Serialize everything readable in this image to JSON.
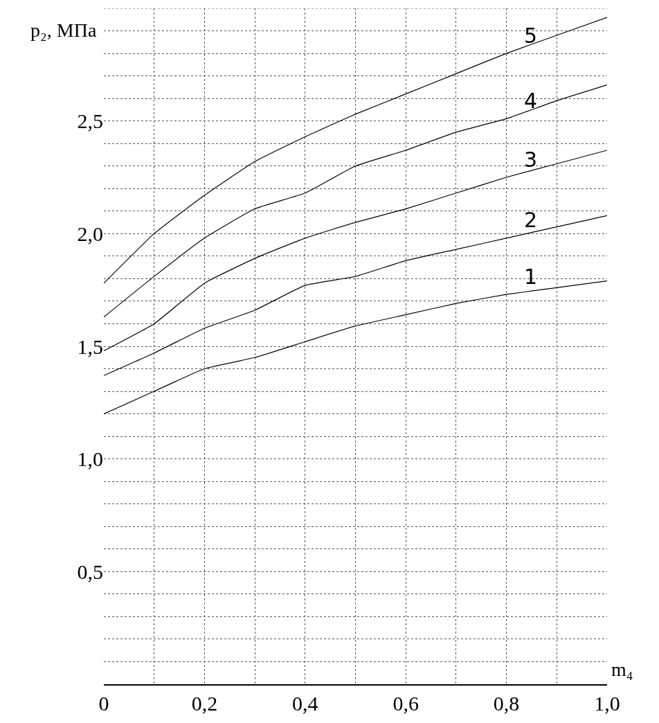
{
  "chart_data": {
    "type": "line",
    "xlabel": "m₄",
    "ylabel": "p₂, МПа",
    "x": [
      0,
      0.1,
      0.2,
      0.3,
      0.4,
      0.5,
      0.6,
      0.7,
      0.8,
      0.9,
      1.0
    ],
    "series": [
      {
        "name": "1",
        "color": "#000000",
        "values": [
          1.2,
          1.3,
          1.4,
          1.45,
          1.52,
          1.59,
          1.64,
          1.69,
          1.73,
          1.76,
          1.79
        ]
      },
      {
        "name": "2",
        "color": "#000000",
        "values": [
          1.37,
          1.47,
          1.58,
          1.66,
          1.77,
          1.81,
          1.88,
          1.93,
          1.98,
          2.03,
          2.08
        ]
      },
      {
        "name": "3",
        "color": "#000000",
        "values": [
          1.48,
          1.6,
          1.78,
          1.89,
          1.98,
          2.05,
          2.11,
          2.18,
          2.25,
          2.31,
          2.37
        ]
      },
      {
        "name": "4",
        "color": "#000000",
        "values": [
          1.63,
          1.81,
          1.98,
          2.11,
          2.18,
          2.3,
          2.37,
          2.45,
          2.51,
          2.59,
          2.66
        ]
      },
      {
        "name": "5",
        "color": "#000000",
        "values": [
          1.78,
          2.0,
          2.17,
          2.32,
          2.43,
          2.53,
          2.62,
          2.71,
          2.8,
          2.88,
          2.96
        ]
      }
    ],
    "xlim": [
      0,
      1.0
    ],
    "xticks": [
      {
        "value": 0,
        "label": "0"
      },
      {
        "value": 0.1,
        "label": null
      },
      {
        "value": 0.2,
        "label": "0,2"
      },
      {
        "value": 0.3,
        "label": null
      },
      {
        "value": 0.4,
        "label": "0,4"
      },
      {
        "value": 0.5,
        "label": null
      },
      {
        "value": 0.6,
        "label": "0,6"
      },
      {
        "value": 0.7,
        "label": null
      },
      {
        "value": 0.8,
        "label": "0,8"
      },
      {
        "value": 0.9,
        "label": null
      },
      {
        "value": 1.0,
        "label": "1,0"
      }
    ],
    "ylim": [
      0,
      3.0
    ],
    "yticks": [
      {
        "value": 0.1,
        "label": null
      },
      {
        "value": 0.2,
        "label": null
      },
      {
        "value": 0.3,
        "label": null
      },
      {
        "value": 0.4,
        "label": null
      },
      {
        "value": 0.5,
        "label": "0,5"
      },
      {
        "value": 0.6,
        "label": null
      },
      {
        "value": 0.7,
        "label": null
      },
      {
        "value": 0.8,
        "label": null
      },
      {
        "value": 0.9,
        "label": null
      },
      {
        "value": 1.0,
        "label": "1,0"
      },
      {
        "value": 1.1,
        "label": null
      },
      {
        "value": 1.2,
        "label": null
      },
      {
        "value": 1.3,
        "label": null
      },
      {
        "value": 1.4,
        "label": null
      },
      {
        "value": 1.5,
        "label": "1,5"
      },
      {
        "value": 1.6,
        "label": null
      },
      {
        "value": 1.7,
        "label": null
      },
      {
        "value": 1.8,
        "label": null
      },
      {
        "value": 1.9,
        "label": null
      },
      {
        "value": 2.0,
        "label": "2,0"
      },
      {
        "value": 2.1,
        "label": null
      },
      {
        "value": 2.2,
        "label": null
      },
      {
        "value": 2.3,
        "label": null
      },
      {
        "value": 2.4,
        "label": null
      },
      {
        "value": 2.5,
        "label": "2,5"
      },
      {
        "value": 2.6,
        "label": null
      },
      {
        "value": 2.7,
        "label": null
      },
      {
        "value": 2.8,
        "label": null
      },
      {
        "value": 2.9,
        "label": null
      },
      {
        "value": 3.0,
        "label": null
      }
    ],
    "grid": true,
    "legend": false,
    "marker": "none",
    "line_style": "solid"
  }
}
